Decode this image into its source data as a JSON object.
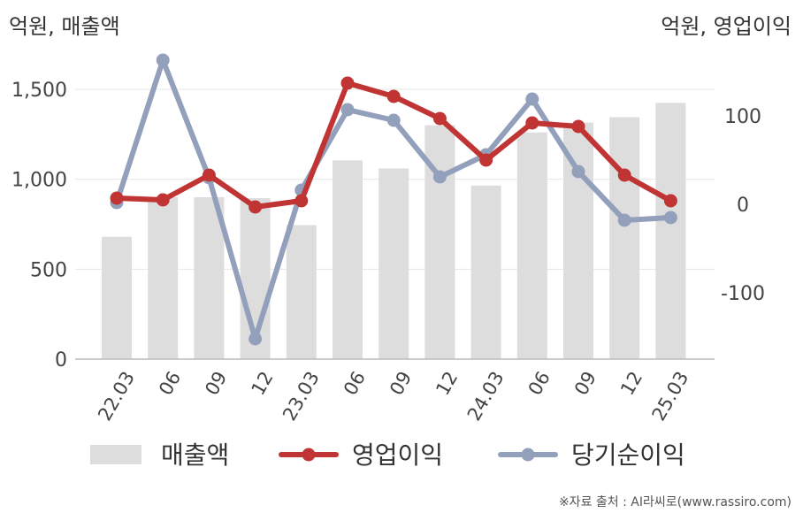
{
  "chart_data": {
    "type": "bar+line",
    "categories": [
      "22.03",
      "06",
      "09",
      "12",
      "23.03",
      "06",
      "09",
      "12",
      "24.03",
      "06",
      "09",
      "12",
      "25.03"
    ],
    "left_axis": {
      "unit_label": "억원, 매출액",
      "ylim": [
        0,
        1500
      ],
      "ticks": [
        0,
        500,
        1000,
        1500
      ],
      "tick_labels": [
        "0",
        "500",
        "1,000",
        "1,500"
      ]
    },
    "right_axis": {
      "unit_label": "억원, 영업이익",
      "ylim": [
        -175,
        158
      ],
      "ticks": [
        -100,
        0,
        100
      ],
      "tick_labels": [
        "-100",
        "0",
        "100"
      ]
    },
    "series": [
      {
        "name": "매출액",
        "kind": "bar",
        "axis": "left",
        "color": "#dddddd",
        "values": [
          680,
          900,
          900,
          895,
          745,
          1105,
          1060,
          1300,
          965,
          1260,
          1315,
          1345,
          1425
        ]
      },
      {
        "name": "영업이익",
        "kind": "line",
        "axis": "right",
        "color": "#c03434",
        "values": [
          7,
          5,
          33,
          -3,
          4,
          137,
          122,
          97,
          50,
          92,
          88,
          33,
          4
        ]
      },
      {
        "name": "당기순이익",
        "kind": "line",
        "axis": "right",
        "color": "#93a0bb",
        "values": [
          2,
          163,
          30,
          -152,
          16,
          107,
          95,
          31,
          56,
          119,
          37,
          -18,
          -15
        ]
      }
    ],
    "grid": true,
    "legend_position": "bottom"
  },
  "source_note": "※자료 출처 : AI라씨로(www.rassiro.com)"
}
